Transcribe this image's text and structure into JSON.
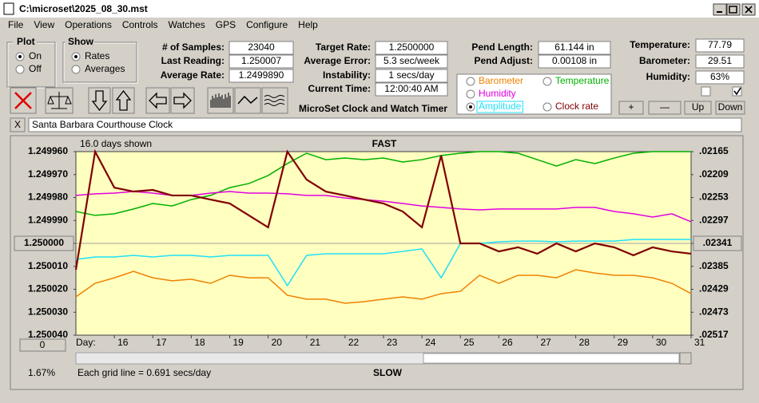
{
  "window": {
    "title": "C:\\microset\\2025_08_30.mst"
  },
  "menu": [
    "File",
    "View",
    "Operations",
    "Controls",
    "Watches",
    "GPS",
    "Configure",
    "Help"
  ],
  "plot_group": {
    "title": "Plot",
    "options": [
      "On",
      "Off"
    ]
  },
  "show_group": {
    "title": "Show",
    "options": [
      "Rates",
      "Averages"
    ]
  },
  "fields": [
    {
      "label": "# of Samples:",
      "value": "23040"
    },
    {
      "label": "Last Reading:",
      "value": "1.250007"
    },
    {
      "label": "Average Rate:",
      "value": "1.2499890"
    },
    {
      "label": "Target Rate:",
      "value": "1.2500000"
    },
    {
      "label": "Average Error:",
      "value": "5.3 sec/week"
    },
    {
      "label": "Instability:",
      "value": "1 secs/day"
    },
    {
      "label": "Current Time:",
      "value": "12:00:40 AM"
    },
    {
      "label": "Pend Length:",
      "value": "61.144 in"
    },
    {
      "label": "Pend Adjust:",
      "value": "0.00108 in"
    },
    {
      "label": "Temperature:",
      "value": "77.79"
    },
    {
      "label": "Barometer:",
      "value": "29.51"
    },
    {
      "label": "Humidity:",
      "value": "63%"
    }
  ],
  "banner": "MicroSet Clock and Watch Timer",
  "buttons": [
    "+",
    "—",
    "Up",
    "Down"
  ],
  "clock_name": {
    "close": "X",
    "name": "Santa Barbara Courthouse Clock"
  },
  "chart_data": {
    "type": "line",
    "span_label": "16.0 days shown",
    "top_label": "FAST",
    "bottom_label": "SLOW",
    "grid_note": "Each grid line = 0.691 secs/day",
    "x_label": "Day:",
    "offset_button": "0",
    "percent": "1.67%",
    "xlim": [
      15,
      31
    ],
    "xticks": [
      16,
      17,
      18,
      19,
      20,
      21,
      22,
      23,
      24,
      25,
      26,
      27,
      28,
      29,
      30,
      31
    ],
    "ylim": [
      1.24996,
      1.25004
    ],
    "y_inverted": true,
    "yticks": [
      {
        "value": 1.24996,
        "label": "1.249960"
      },
      {
        "value": 1.24997,
        "label": "1.249970"
      },
      {
        "value": 1.24998,
        "label": "1.249980"
      },
      {
        "value": 1.24999,
        "label": "1.249990"
      },
      {
        "value": 1.25,
        "label": "1.250000"
      },
      {
        "value": 1.25001,
        "label": "1.250010"
      },
      {
        "value": 1.25002,
        "label": "1.250020"
      },
      {
        "value": 1.25003,
        "label": "1.250030"
      },
      {
        "value": 1.25004,
        "label": "1.250040"
      }
    ],
    "y2lim": [
      0.02165,
      0.02517
    ],
    "y2ticks": [
      {
        "value": 0.02165,
        "label": ".02165"
      },
      {
        "value": 0.02209,
        "label": ".02209"
      },
      {
        "value": 0.02253,
        "label": ".02253"
      },
      {
        "value": 0.02297,
        "label": ".02297"
      },
      {
        "value": 0.02341,
        "label": ".02341"
      },
      {
        "value": 0.02385,
        "label": ".02385"
      },
      {
        "value": 0.02429,
        "label": ".02429"
      },
      {
        "value": 0.02473,
        "label": ".02473"
      },
      {
        "value": 0.02517,
        "label": ".02517"
      }
    ],
    "background": "#ffffc0",
    "x": [
      15,
      15.5,
      16,
      16.5,
      17,
      17.5,
      18,
      18.5,
      19,
      19.5,
      20,
      20.5,
      21,
      21.5,
      22,
      22.5,
      23,
      23.5,
      24,
      24.5,
      25,
      25.5,
      26,
      26.5,
      27,
      27.5,
      28,
      28.5,
      29,
      29.5,
      30,
      30.5,
      31
    ],
    "series": [
      {
        "name": "Barometer",
        "color": "#f08000",
        "values": [
          1.2500233,
          1.2500174,
          1.250015,
          1.2500122,
          1.250015,
          1.2500163,
          1.2500156,
          1.2500174,
          1.2500139,
          1.250015,
          1.250015,
          1.2500226,
          1.2500243,
          1.2500243,
          1.2500261,
          1.2500254,
          1.2500243,
          1.2500233,
          1.2500243,
          1.2500219,
          1.2500209,
          1.2500139,
          1.2500174,
          1.2500139,
          1.2500139,
          1.250015,
          1.2500115,
          1.2500129,
          1.2500139,
          1.2500139,
          1.250015,
          1.2500174,
          1.2500219
        ]
      },
      {
        "name": "Temperature",
        "color": "#00b000",
        "values": [
          1.2499861,
          1.2499878,
          1.2499871,
          1.249985,
          1.2499826,
          1.2499837,
          1.2499809,
          1.2499791,
          1.2499757,
          1.2499739,
          1.2499704,
          1.2499652,
          1.2499607,
          1.2499635,
          1.2499628,
          1.2499635,
          1.2499628,
          1.2499645,
          1.2499635,
          1.2499617,
          1.2499607,
          1.24996,
          1.24996,
          1.2499607,
          1.2499635,
          1.2499663,
          1.2499635,
          1.2499652,
          1.2499628,
          1.2499607,
          1.24996,
          1.24996,
          1.24996
        ]
      },
      {
        "name": "Humidity",
        "color": "#e000e0",
        "values": [
          1.2499791,
          1.2499784,
          1.2499781,
          1.2499774,
          1.2499781,
          1.2499791,
          1.2499791,
          1.2499781,
          1.2499774,
          1.2499781,
          1.2499781,
          1.2499784,
          1.2499791,
          1.2499791,
          1.2499802,
          1.2499809,
          1.2499816,
          1.2499826,
          1.2499837,
          1.2499843,
          1.249985,
          1.2499854,
          1.249985,
          1.249985,
          1.249985,
          1.249985,
          1.2499843,
          1.2499843,
          1.2499861,
          1.2499871,
          1.2499885,
          1.2499871,
          1.2499906
        ]
      },
      {
        "name": "Amplitude",
        "color": "#20e0f8",
        "values": [
          1.250007,
          1.2500059,
          1.2500059,
          1.2500052,
          1.2500059,
          1.2500052,
          1.2500052,
          1.2500059,
          1.2500052,
          1.2500052,
          1.2500052,
          1.2500184,
          1.2500052,
          1.2500045,
          1.2500045,
          1.2500045,
          1.2500045,
          1.2500035,
          1.2500024,
          1.250015,
          1.25,
          1.25,
          1.2499993,
          1.249999,
          1.249999,
          1.2499993,
          1.249999,
          1.249999,
          1.249999,
          1.2499983,
          1.2499983,
          1.2499983,
          1.2499983
        ]
      },
      {
        "name": "Clock rate",
        "color": "#800000",
        "values": [
          1.2500115,
          1.24996,
          1.2499757,
          1.2499774,
          1.2499767,
          1.2499791,
          1.2499791,
          1.2499809,
          1.2499826,
          1.2499878,
          1.249993,
          1.24996,
          1.2499722,
          1.2499774,
          1.2499791,
          1.2499809,
          1.2499826,
          1.2499861,
          1.249993,
          1.2499617,
          1.25,
          1.25,
          1.2500035,
          1.2500017,
          1.2500045,
          1.25,
          1.2500035,
          1.25,
          1.2500017,
          1.2500052,
          1.2500017,
          1.2500035,
          1.2500045
        ]
      }
    ]
  }
}
